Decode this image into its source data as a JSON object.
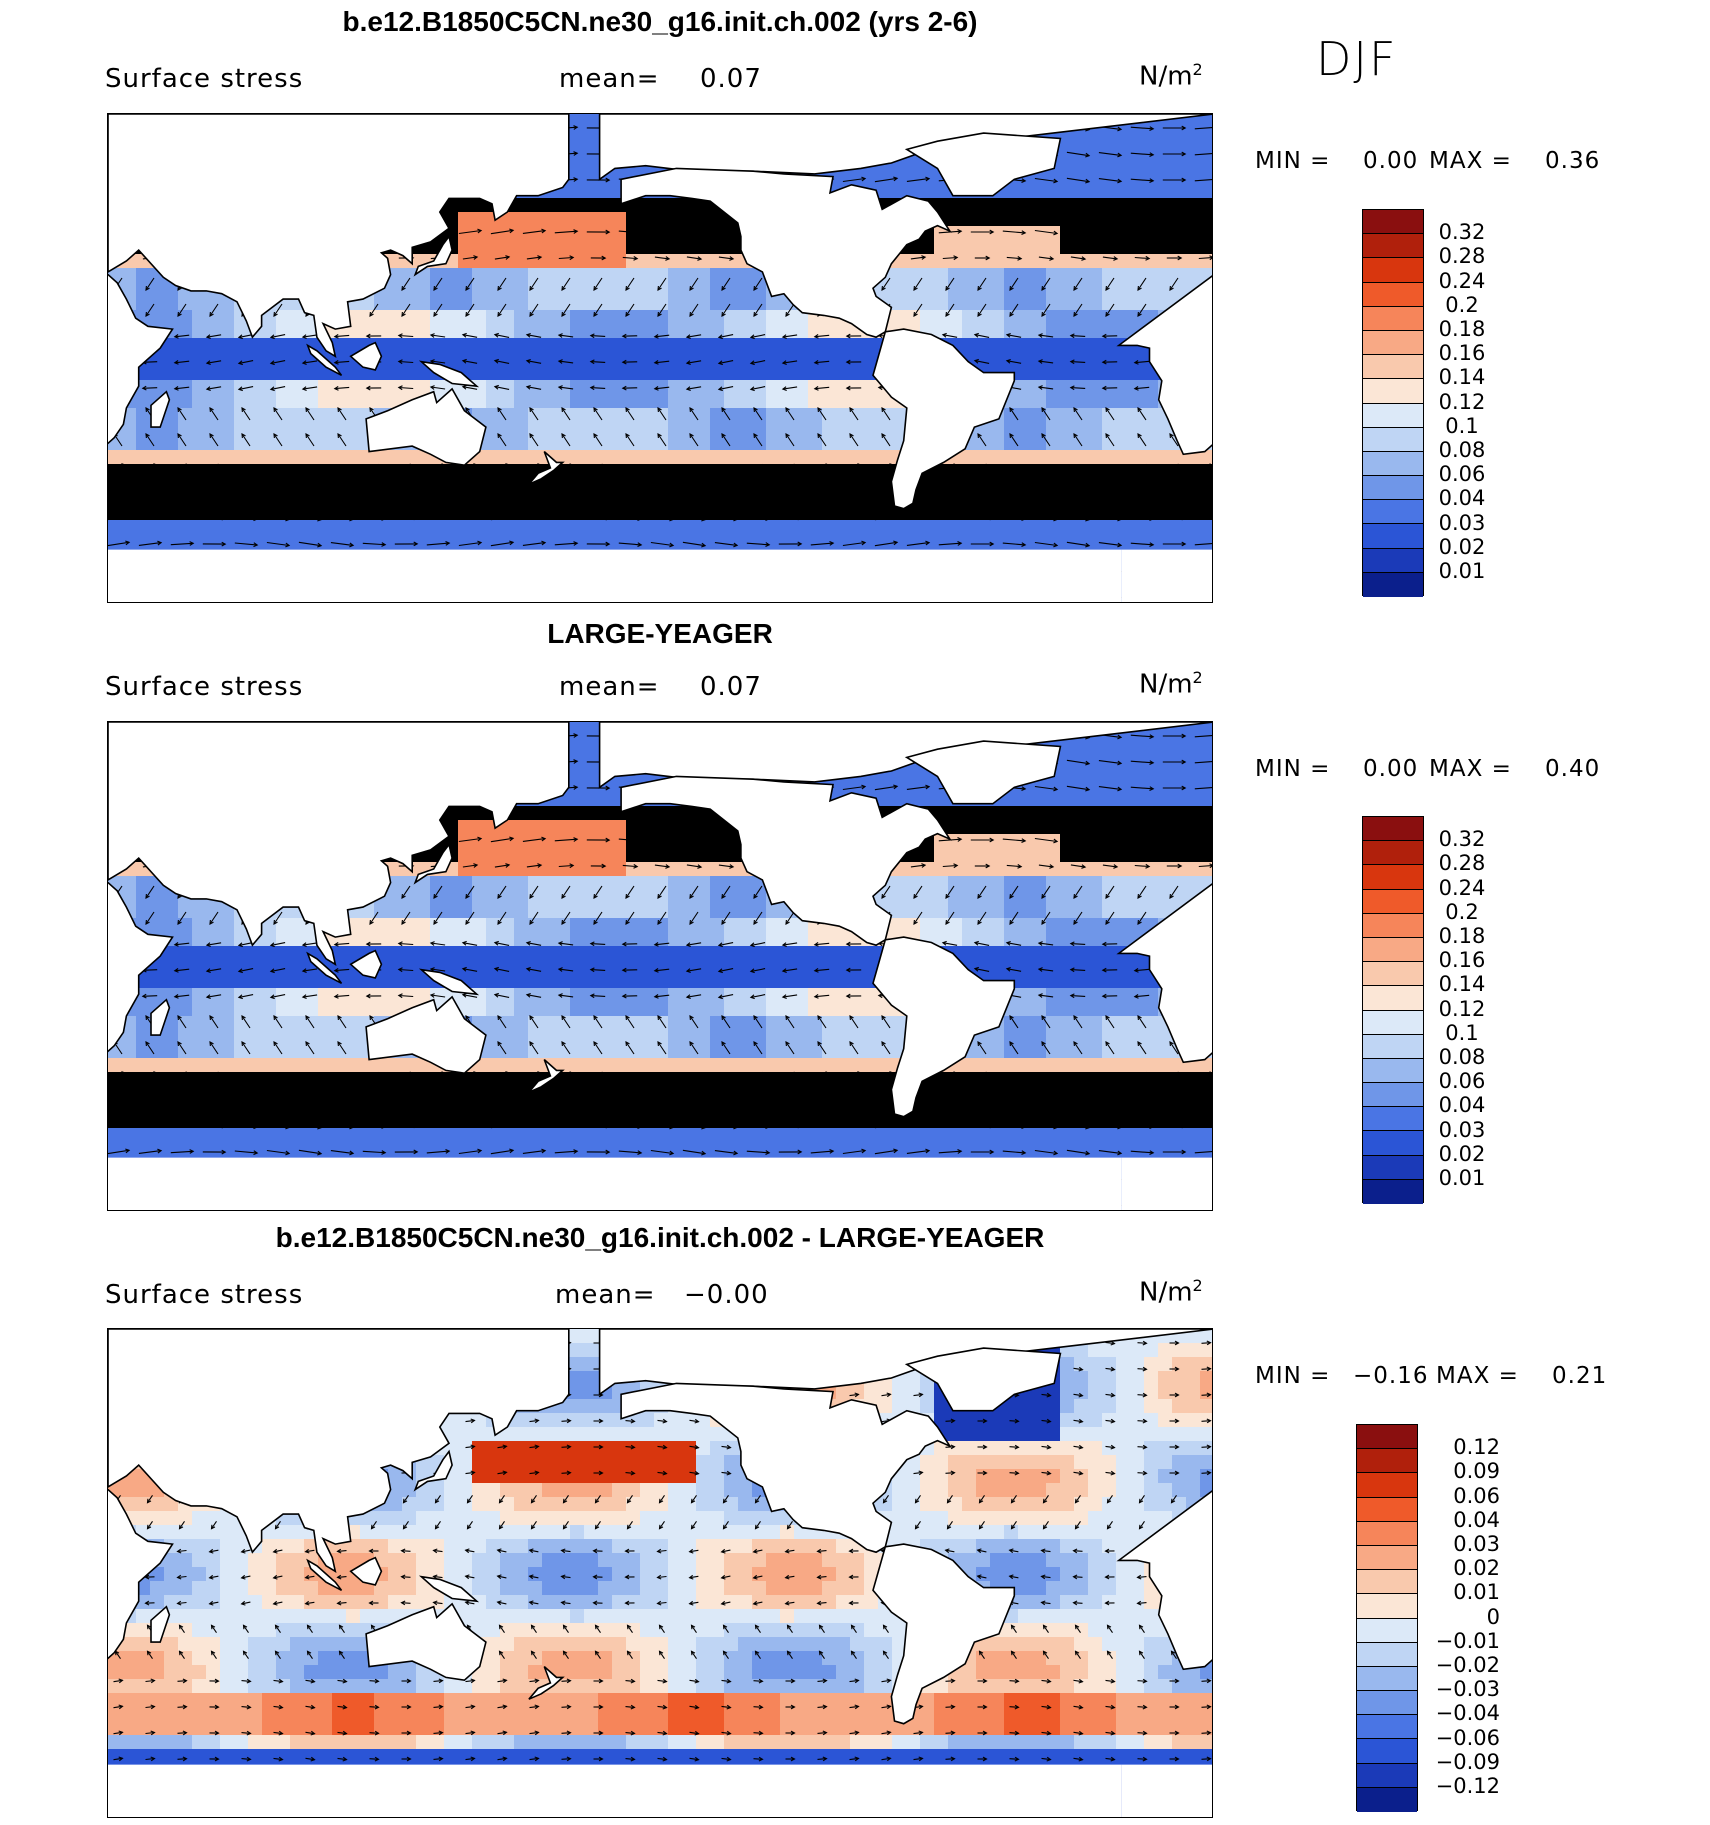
{
  "season": "DJF",
  "panels": [
    {
      "title": "b.e12.B1850C5CN.ne30_g16.init.ch.002 (yrs 2-6)",
      "variable": "Surface stress",
      "mean_label": "mean=",
      "mean_value": "0.07",
      "units": "N/m",
      "units_exp": "2",
      "min_label": "MIN =",
      "min_value": "0.00",
      "max_label": "MAX =",
      "max_value": "0.36",
      "colorbar_labels": [
        "0.32",
        "0.28",
        "0.24",
        "0.2",
        "0.18",
        "0.16",
        "0.14",
        "0.12",
        "0.1",
        "0.08",
        "0.06",
        "0.04",
        "0.03",
        "0.02",
        "0.01"
      ],
      "colorbar_colors": [
        "#8a0f0f",
        "#b0200c",
        "#d8360e",
        "#ef5a2a",
        "#f6855a",
        "#f8a985",
        "#f9c9ad",
        "#fbe6d6",
        "#dce9f8",
        "#bfd5f4",
        "#99b8ee",
        "#6f96e8",
        "#4a75e4",
        "#2b55d6",
        "#1b3ab8",
        "#0b1f8c"
      ],
      "field": "base"
    },
    {
      "title": "LARGE-YEAGER",
      "variable": "Surface stress",
      "mean_label": "mean=",
      "mean_value": "0.07",
      "units": "N/m",
      "units_exp": "2",
      "min_label": "MIN =",
      "min_value": "0.00",
      "max_label": "MAX =",
      "max_value": "0.40",
      "colorbar_labels": [
        "0.32",
        "0.28",
        "0.24",
        "0.2",
        "0.18",
        "0.16",
        "0.14",
        "0.12",
        "0.1",
        "0.08",
        "0.06",
        "0.04",
        "0.03",
        "0.02",
        "0.01"
      ],
      "colorbar_colors": [
        "#8a0f0f",
        "#b0200c",
        "#d8360e",
        "#ef5a2a",
        "#f6855a",
        "#f8a985",
        "#f9c9ad",
        "#fbe6d6",
        "#dce9f8",
        "#bfd5f4",
        "#99b8ee",
        "#6f96e8",
        "#4a75e4",
        "#2b55d6",
        "#1b3ab8",
        "#0b1f8c"
      ],
      "field": "base"
    },
    {
      "title": "b.e12.B1850C5CN.ne30_g16.init.ch.002 - LARGE-YEAGER",
      "variable": "Surface stress",
      "mean_label": "mean=",
      "mean_value": "−0.00",
      "units": "N/m",
      "units_exp": "2",
      "min_label": "MIN =",
      "min_value": "−0.16",
      "max_label": "MAX =",
      "max_value": "0.21",
      "colorbar_labels": [
        "0.12",
        "0.09",
        "0.06",
        "0.04",
        "0.03",
        "0.02",
        "0.01",
        "0",
        "−0.01",
        "−0.02",
        "−0.03",
        "−0.04",
        "−0.06",
        "−0.09",
        "−0.12"
      ],
      "colorbar_colors": [
        "#8a0f0f",
        "#b0200c",
        "#d8360e",
        "#ef5a2a",
        "#f6855a",
        "#f8a985",
        "#f9c9ad",
        "#fbe6d6",
        "#dce9f8",
        "#bfd5f4",
        "#99b8ee",
        "#6f96e8",
        "#4a75e4",
        "#2b55d6",
        "#1b3ab8",
        "#0b1f8c"
      ],
      "field": "diff"
    }
  ]
}
